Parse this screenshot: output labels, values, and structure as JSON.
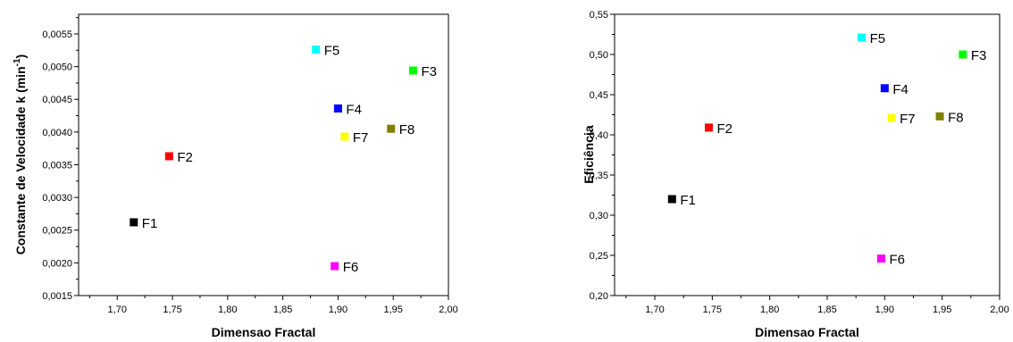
{
  "chart_data": [
    {
      "type": "scatter",
      "xlabel": "Dimensao Fractal",
      "ylabel": "Constante de Velocidade k (min",
      "ylabel_sup": "-1",
      "ylabel_end": ")",
      "xlim": [
        1.665,
        2.0
      ],
      "ylim": [
        0.0015,
        0.0058
      ],
      "xticks": [
        1.7,
        1.75,
        1.8,
        1.85,
        1.9,
        1.95,
        2.0
      ],
      "xtick_labels": [
        "1,70",
        "1,75",
        "1,80",
        "1,85",
        "1,90",
        "1,95",
        "2,00"
      ],
      "yticks": [
        0.0015,
        0.002,
        0.0025,
        0.003,
        0.0035,
        0.004,
        0.0045,
        0.005,
        0.0055
      ],
      "ytick_labels": [
        "0,0015",
        "0,0020",
        "0,0025",
        "0,0030",
        "0,0035",
        "0,0040",
        "0,0045",
        "0,0050",
        "0,0055"
      ],
      "points": [
        {
          "label": "F1",
          "x": 1.715,
          "y": 0.00262,
          "color": "#000000"
        },
        {
          "label": "F2",
          "x": 1.747,
          "y": 0.00363,
          "color": "#ff0000"
        },
        {
          "label": "F3",
          "x": 1.968,
          "y": 0.00494,
          "color": "#00ff00"
        },
        {
          "label": "F4",
          "x": 1.9,
          "y": 0.00436,
          "color": "#0000ff"
        },
        {
          "label": "F5",
          "x": 1.88,
          "y": 0.00526,
          "color": "#00ffff"
        },
        {
          "label": "F6",
          "x": 1.897,
          "y": 0.00195,
          "color": "#ff00ff"
        },
        {
          "label": "F7",
          "x": 1.906,
          "y": 0.00393,
          "color": "#ffff00"
        },
        {
          "label": "F8",
          "x": 1.948,
          "y": 0.00405,
          "color": "#808000"
        }
      ]
    },
    {
      "type": "scatter",
      "xlabel": "Dimensao Fractal",
      "ylabel": "Eficiência",
      "ylabel_sup": "",
      "ylabel_end": "",
      "xlim": [
        1.665,
        2.0
      ],
      "ylim": [
        0.2,
        0.55
      ],
      "xticks": [
        1.7,
        1.75,
        1.8,
        1.85,
        1.9,
        1.95,
        2.0
      ],
      "xtick_labels": [
        "1,70",
        "1,75",
        "1,80",
        "1,85",
        "1,90",
        "1,95",
        "2,00"
      ],
      "yticks": [
        0.2,
        0.25,
        0.3,
        0.35,
        0.4,
        0.45,
        0.5,
        0.55
      ],
      "ytick_labels": [
        "0,20",
        "0,25",
        "0,30",
        "0,35",
        "0,40",
        "0,45",
        "0,50",
        "0,55"
      ],
      "points": [
        {
          "label": "F1",
          "x": 1.715,
          "y": 0.32,
          "color": "#000000"
        },
        {
          "label": "F2",
          "x": 1.747,
          "y": 0.409,
          "color": "#ff0000"
        },
        {
          "label": "F3",
          "x": 1.968,
          "y": 0.5,
          "color": "#00ff00"
        },
        {
          "label": "F4",
          "x": 1.9,
          "y": 0.458,
          "color": "#0000ff"
        },
        {
          "label": "F5",
          "x": 1.88,
          "y": 0.521,
          "color": "#00ffff"
        },
        {
          "label": "F6",
          "x": 1.897,
          "y": 0.246,
          "color": "#ff00ff"
        },
        {
          "label": "F7",
          "x": 1.906,
          "y": 0.421,
          "color": "#ffff00"
        },
        {
          "label": "F8",
          "x": 1.948,
          "y": 0.423,
          "color": "#808000"
        }
      ]
    }
  ]
}
